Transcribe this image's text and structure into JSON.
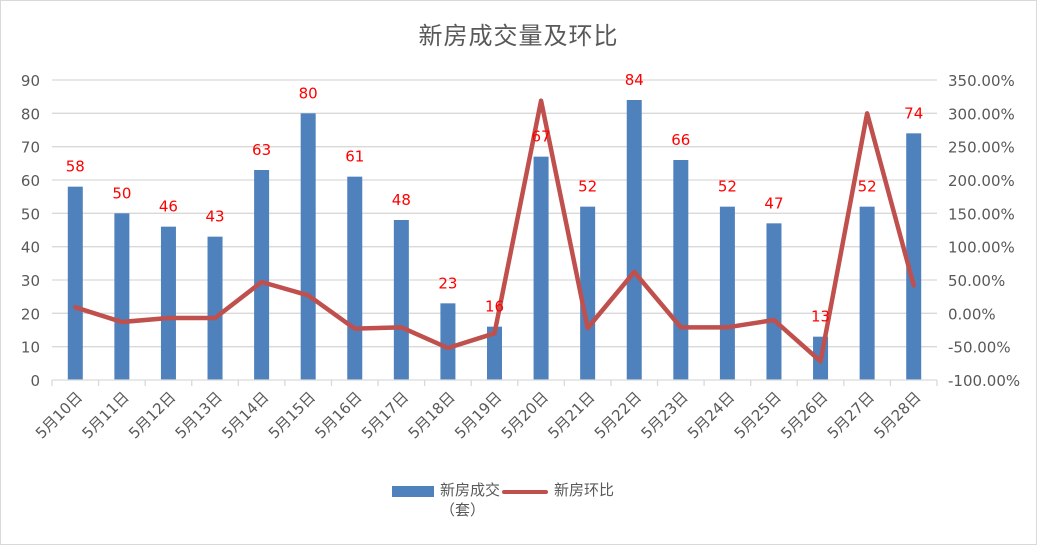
{
  "chart_data": {
    "type": "bar+line",
    "title": "新房成交量及环比",
    "categories": [
      "5月10日",
      "5月11日",
      "5月12日",
      "5月13日",
      "5月14日",
      "5月15日",
      "5月16日",
      "5月17日",
      "5月18日",
      "5月19日",
      "5月20日",
      "5月21日",
      "5月22日",
      "5月23日",
      "5月24日",
      "5月25日",
      "5月26日",
      "5月27日",
      "5月28日"
    ],
    "series": [
      {
        "name": "新房成交（套）",
        "type": "bar",
        "axis": "left",
        "color": "#4f81bd",
        "values": [
          58,
          50,
          46,
          43,
          63,
          80,
          61,
          48,
          23,
          16,
          67,
          52,
          84,
          66,
          52,
          47,
          13,
          52,
          74
        ],
        "data_labels": true,
        "label_color": "#ff0000"
      },
      {
        "name": "新房环比",
        "type": "line",
        "axis": "right",
        "color": "#c0504d",
        "values": [
          0.09,
          -0.13,
          -0.07,
          -0.07,
          0.47,
          0.27,
          -0.23,
          -0.21,
          -0.52,
          -0.3,
          3.19,
          -0.22,
          0.62,
          -0.21,
          -0.21,
          -0.1,
          -0.72,
          3.0,
          0.42
        ]
      }
    ],
    "left_axis": {
      "min": 0,
      "max": 90,
      "step": 10,
      "ticks": [
        "0",
        "10",
        "20",
        "30",
        "40",
        "50",
        "60",
        "70",
        "80",
        "90"
      ]
    },
    "right_axis": {
      "min": -1.0,
      "max": 3.5,
      "step": 0.5,
      "ticks": [
        "-100.00%",
        "-50.00%",
        "0.00%",
        "50.00%",
        "100.00%",
        "150.00%",
        "200.00%",
        "250.00%",
        "300.00%",
        "350.00%"
      ]
    },
    "xlabel": "",
    "ylabel": "",
    "grid": true,
    "legend_position": "bottom"
  },
  "legend": {
    "bar_label_line1": "新房成交",
    "bar_label_line2": "（套）",
    "line_label": "新房环比"
  }
}
